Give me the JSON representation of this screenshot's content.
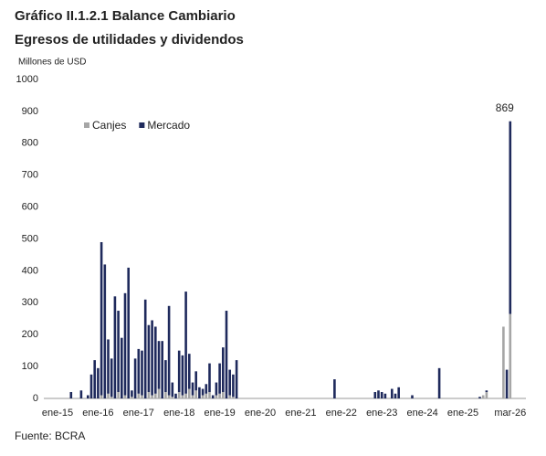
{
  "chart_data": {
    "type": "stacked_bar",
    "title": "Gráfico II.1.2.1 Balance Cambiario",
    "subtitle": "Egresos de utilidades y dividendos",
    "y_axis_label": "Millones de USD",
    "source": "Fuente: BCRA",
    "categories": [
      "ene-15",
      null,
      null,
      null,
      null,
      null,
      null,
      null,
      null,
      null,
      null,
      null,
      "ene-16",
      null,
      null,
      null,
      null,
      null,
      null,
      null,
      null,
      null,
      null,
      null,
      "ene-17",
      null,
      null,
      null,
      null,
      null,
      null,
      null,
      null,
      null,
      null,
      null,
      "ene-18",
      null,
      null,
      null,
      null,
      null,
      null,
      null,
      null,
      null,
      null,
      null,
      "ene-19",
      null,
      null,
      null,
      null,
      null,
      null,
      null,
      null,
      null,
      null,
      null,
      "ene-20",
      null,
      null,
      null,
      null,
      null,
      null,
      null,
      null,
      null,
      null,
      null,
      "ene-21",
      null,
      null,
      null,
      null,
      null,
      null,
      null,
      null,
      null,
      null,
      null,
      "ene-22",
      null,
      null,
      null,
      null,
      null,
      null,
      null,
      null,
      null,
      null,
      null,
      "ene-23",
      null,
      null,
      null,
      null,
      null,
      null,
      null,
      null,
      null,
      null,
      null,
      "ene-24",
      null,
      null,
      null,
      null,
      null,
      null,
      null,
      null,
      null,
      null,
      null,
      "ene-25",
      null,
      null,
      null,
      null,
      null,
      null,
      null,
      null,
      null,
      null,
      null,
      null,
      null,
      "mar-26"
    ],
    "series": [
      {
        "name": "Canjes",
        "color": "#a6a6a6",
        "values": [
          0,
          0,
          0,
          0,
          0,
          0,
          0,
          0,
          0,
          0,
          0,
          0,
          0,
          10,
          0,
          15,
          5,
          0,
          20,
          0,
          10,
          0,
          5,
          0,
          15,
          10,
          0,
          20,
          10,
          15,
          30,
          0,
          20,
          10,
          5,
          0,
          20,
          10,
          15,
          30,
          10,
          25,
          0,
          10,
          15,
          20,
          0,
          10,
          15,
          20,
          0,
          10,
          5,
          0,
          0,
          0,
          0,
          0,
          0,
          0,
          0,
          0,
          0,
          0,
          0,
          0,
          0,
          0,
          0,
          0,
          0,
          0,
          0,
          0,
          0,
          0,
          0,
          0,
          0,
          0,
          0,
          0,
          0,
          0,
          0,
          0,
          0,
          0,
          0,
          0,
          0,
          0,
          0,
          0,
          0,
          0,
          0,
          0,
          0,
          0,
          0,
          0,
          0,
          0,
          0,
          0,
          0,
          0,
          0,
          0,
          0,
          0,
          0,
          0,
          0,
          0,
          0,
          0,
          0,
          0,
          0,
          0,
          0,
          0,
          0,
          0,
          10,
          20,
          0,
          0,
          0,
          0,
          225,
          0,
          265
        ]
      },
      {
        "name": "Mercado",
        "color": "#1f2a5c",
        "values": [
          0,
          0,
          0,
          0,
          20,
          0,
          0,
          25,
          0,
          10,
          75,
          120,
          95,
          480,
          420,
          170,
          120,
          320,
          255,
          190,
          320,
          410,
          20,
          125,
          140,
          140,
          310,
          210,
          235,
          210,
          150,
          180,
          100,
          280,
          45,
          15,
          130,
          125,
          320,
          110,
          40,
          60,
          35,
          20,
          30,
          90,
          10,
          40,
          95,
          140,
          275,
          80,
          70,
          120,
          0,
          0,
          0,
          0,
          0,
          0,
          0,
          0,
          0,
          0,
          0,
          0,
          0,
          0,
          0,
          0,
          0,
          0,
          0,
          0,
          0,
          0,
          0,
          0,
          0,
          0,
          0,
          0,
          60,
          0,
          0,
          0,
          0,
          0,
          0,
          0,
          0,
          0,
          0,
          0,
          20,
          25,
          20,
          15,
          0,
          30,
          15,
          35,
          0,
          0,
          0,
          10,
          0,
          0,
          0,
          0,
          0,
          0,
          0,
          95,
          0,
          0,
          0,
          0,
          0,
          0,
          0,
          0,
          0,
          0,
          0,
          5,
          0,
          5,
          0,
          0,
          0,
          0,
          0,
          90,
          604
        ]
      }
    ],
    "annotation": 869,
    "ylim": [
      0,
      1000
    ],
    "yticks": [
      0,
      100,
      200,
      300,
      400,
      500,
      600,
      700,
      800,
      900,
      1000
    ],
    "legend": "top-left"
  }
}
